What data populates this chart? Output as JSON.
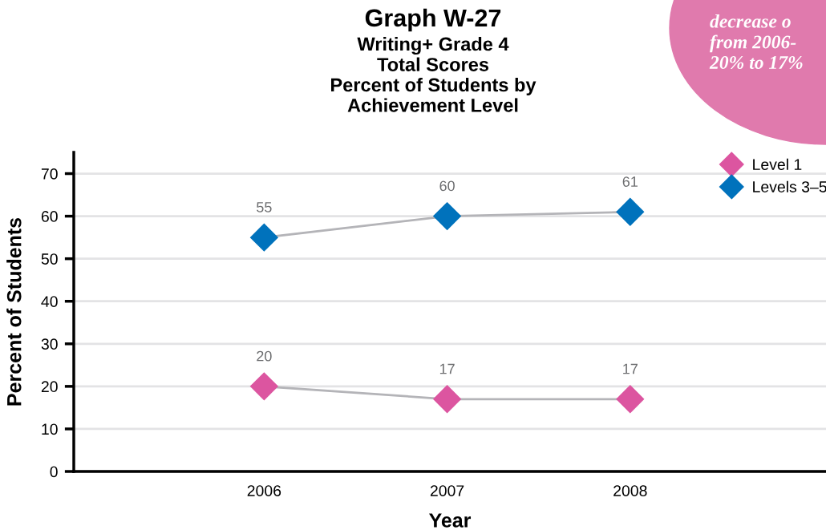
{
  "chart_data": {
    "type": "line",
    "title": "Graph W-27",
    "subtitle": "Writing+ Grade 4\nTotal Scores\nPercent of Students by\nAchievement Level",
    "xlabel": "Year",
    "ylabel": "Percent of Students",
    "categories": [
      "2006",
      "2007",
      "2008"
    ],
    "series": [
      {
        "name": "Level 1",
        "color": "#dc55a0",
        "values": [
          20,
          17,
          17
        ]
      },
      {
        "name": "Levels 3–5",
        "color": "#0072bc",
        "values": [
          55,
          60,
          61
        ]
      }
    ],
    "ylim": [
      0,
      75
    ],
    "yticks": [
      0,
      10,
      20,
      30,
      40,
      50,
      60,
      70
    ],
    "grid": "y",
    "legend": "top right",
    "marker": "diamond",
    "data_labels": true,
    "annotations": [
      "decrease o\nfrom 2006-\n20% to 17%"
    ]
  }
}
